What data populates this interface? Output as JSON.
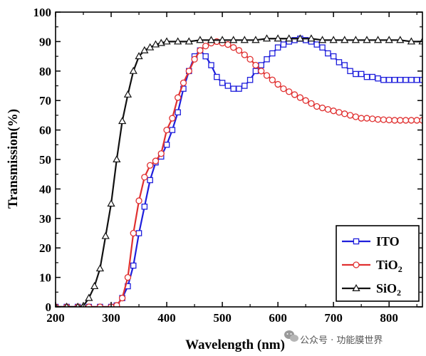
{
  "chart_data": {
    "type": "line",
    "title": "",
    "xlabel": "Wavelength (nm)",
    "ylabel": "Transmission(%)",
    "xlim": [
      200,
      860
    ],
    "ylim": [
      0,
      100
    ],
    "xticks": [
      200,
      300,
      400,
      500,
      600,
      700,
      800
    ],
    "yticks": [
      0,
      10,
      20,
      30,
      40,
      50,
      60,
      70,
      80,
      90,
      100
    ],
    "grid": false,
    "legend_position": "bottom-right",
    "series": [
      {
        "name": "ITO",
        "color": "#1f1fdc",
        "marker": "square",
        "points": [
          [
            200,
            0
          ],
          [
            220,
            0
          ],
          [
            240,
            0
          ],
          [
            260,
            0
          ],
          [
            280,
            0
          ],
          [
            300,
            0
          ],
          [
            310,
            0.5
          ],
          [
            320,
            3
          ],
          [
            330,
            7
          ],
          [
            340,
            14
          ],
          [
            350,
            25
          ],
          [
            360,
            34
          ],
          [
            370,
            43
          ],
          [
            380,
            49
          ],
          [
            390,
            51
          ],
          [
            400,
            55
          ],
          [
            410,
            60
          ],
          [
            420,
            66
          ],
          [
            430,
            74
          ],
          [
            440,
            80
          ],
          [
            450,
            85
          ],
          [
            460,
            87
          ],
          [
            470,
            85
          ],
          [
            480,
            82
          ],
          [
            490,
            78
          ],
          [
            500,
            76
          ],
          [
            510,
            75
          ],
          [
            520,
            74
          ],
          [
            530,
            74
          ],
          [
            540,
            75
          ],
          [
            550,
            77
          ],
          [
            560,
            80
          ],
          [
            570,
            82
          ],
          [
            580,
            84
          ],
          [
            590,
            86
          ],
          [
            600,
            88
          ],
          [
            610,
            89
          ],
          [
            620,
            90
          ],
          [
            630,
            90.5
          ],
          [
            640,
            91
          ],
          [
            650,
            90.5
          ],
          [
            660,
            90
          ],
          [
            670,
            89
          ],
          [
            680,
            88
          ],
          [
            690,
            86
          ],
          [
            700,
            85
          ],
          [
            710,
            83
          ],
          [
            720,
            82
          ],
          [
            730,
            80
          ],
          [
            740,
            79
          ],
          [
            750,
            79
          ],
          [
            760,
            78
          ],
          [
            770,
            78
          ],
          [
            780,
            77.5
          ],
          [
            790,
            77
          ],
          [
            800,
            77
          ],
          [
            810,
            77
          ],
          [
            820,
            77
          ],
          [
            830,
            77
          ],
          [
            840,
            77
          ],
          [
            850,
            77
          ],
          [
            860,
            77
          ]
        ]
      },
      {
        "name": "TiO",
        "name_subscript": "2",
        "color": "#e03030",
        "marker": "circle",
        "points": [
          [
            200,
            0
          ],
          [
            220,
            0
          ],
          [
            240,
            0
          ],
          [
            260,
            0
          ],
          [
            280,
            0
          ],
          [
            300,
            0
          ],
          [
            310,
            0.5
          ],
          [
            320,
            3
          ],
          [
            330,
            10
          ],
          [
            340,
            25
          ],
          [
            350,
            36
          ],
          [
            360,
            44
          ],
          [
            370,
            48
          ],
          [
            380,
            49.5
          ],
          [
            390,
            52
          ],
          [
            400,
            60
          ],
          [
            410,
            64
          ],
          [
            420,
            71
          ],
          [
            430,
            76
          ],
          [
            440,
            80
          ],
          [
            450,
            84
          ],
          [
            460,
            87
          ],
          [
            470,
            88.5
          ],
          [
            480,
            89.5
          ],
          [
            490,
            90
          ],
          [
            500,
            89.5
          ],
          [
            510,
            89
          ],
          [
            520,
            88
          ],
          [
            530,
            87
          ],
          [
            540,
            85.5
          ],
          [
            550,
            84
          ],
          [
            560,
            82
          ],
          [
            570,
            80
          ],
          [
            580,
            78.5
          ],
          [
            590,
            77
          ],
          [
            600,
            75.5
          ],
          [
            610,
            74
          ],
          [
            620,
            73
          ],
          [
            630,
            72
          ],
          [
            640,
            71
          ],
          [
            650,
            70
          ],
          [
            660,
            69
          ],
          [
            670,
            68
          ],
          [
            680,
            67.5
          ],
          [
            690,
            67
          ],
          [
            700,
            66.5
          ],
          [
            710,
            66
          ],
          [
            720,
            65.5
          ],
          [
            730,
            65
          ],
          [
            740,
            64.5
          ],
          [
            750,
            64
          ],
          [
            760,
            64
          ],
          [
            770,
            63.8
          ],
          [
            780,
            63.6
          ],
          [
            790,
            63.5
          ],
          [
            800,
            63.4
          ],
          [
            810,
            63.3
          ],
          [
            820,
            63.3
          ],
          [
            830,
            63.3
          ],
          [
            840,
            63.3
          ],
          [
            850,
            63.3
          ],
          [
            860,
            63.3
          ]
        ]
      },
      {
        "name": "SiO",
        "name_subscript": "2",
        "color": "#111111",
        "marker": "triangle",
        "points": [
          [
            200,
            0
          ],
          [
            220,
            0
          ],
          [
            240,
            0
          ],
          [
            250,
            0.3
          ],
          [
            260,
            3
          ],
          [
            270,
            7
          ],
          [
            280,
            13
          ],
          [
            290,
            24
          ],
          [
            300,
            35
          ],
          [
            310,
            50
          ],
          [
            320,
            63
          ],
          [
            330,
            72
          ],
          [
            340,
            80
          ],
          [
            350,
            85
          ],
          [
            360,
            87
          ],
          [
            370,
            88
          ],
          [
            380,
            89
          ],
          [
            390,
            89.5
          ],
          [
            400,
            90
          ],
          [
            420,
            90
          ],
          [
            440,
            90
          ],
          [
            460,
            90.5
          ],
          [
            480,
            90.5
          ],
          [
            500,
            90.5
          ],
          [
            520,
            90.5
          ],
          [
            540,
            90.5
          ],
          [
            560,
            90.5
          ],
          [
            580,
            91
          ],
          [
            600,
            91
          ],
          [
            620,
            91
          ],
          [
            640,
            91
          ],
          [
            660,
            91
          ],
          [
            680,
            90.5
          ],
          [
            700,
            90.5
          ],
          [
            720,
            90.5
          ],
          [
            740,
            90.5
          ],
          [
            760,
            90.5
          ],
          [
            780,
            90.5
          ],
          [
            800,
            90.5
          ],
          [
            820,
            90.5
          ],
          [
            840,
            90
          ],
          [
            860,
            90
          ]
        ]
      }
    ]
  },
  "watermark": {
    "icon": "wechat-icon",
    "text": "公众号 · 功能膜世界"
  }
}
